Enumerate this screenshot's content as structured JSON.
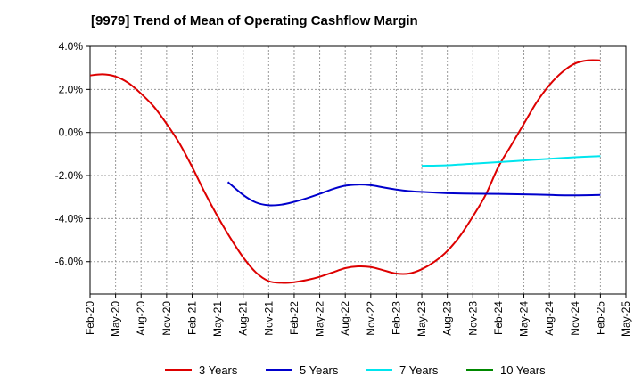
{
  "chart_data": {
    "type": "line",
    "title": "[9979]  Trend of Mean of Operating Cashflow Margin",
    "xlabel": "",
    "ylabel": "",
    "x_ticks": [
      "Feb-20",
      "May-20",
      "Aug-20",
      "Nov-20",
      "Feb-21",
      "May-21",
      "Aug-21",
      "Nov-21",
      "Feb-22",
      "May-22",
      "Aug-22",
      "Nov-22",
      "Feb-23",
      "May-23",
      "Aug-23",
      "Nov-23",
      "Feb-24",
      "May-24",
      "Aug-24",
      "Nov-24",
      "Feb-25",
      "May-25"
    ],
    "y_ticks": [
      "4.0%",
      "2.0%",
      "0.0%",
      "-2.0%",
      "-4.0%",
      "-6.0%"
    ],
    "y_tick_values": [
      4,
      2,
      0,
      -2,
      -4,
      -6
    ],
    "ylim": [
      -7.5,
      4.0
    ],
    "x_unit": "quarter index from Feb-20",
    "grid": true,
    "legend_position": "bottom",
    "series": [
      {
        "name": "3 Years",
        "color": "#dd0000",
        "x": [
          0,
          0.5,
          1,
          1.5,
          2,
          2.5,
          3,
          3.5,
          4,
          4.5,
          5,
          5.5,
          6,
          6.5,
          7,
          7.5,
          8,
          8.5,
          9,
          9.5,
          10,
          10.5,
          11,
          11.5,
          12,
          12.5,
          13,
          13.5,
          14,
          14.5,
          15,
          15.5,
          16,
          16.5,
          17,
          17.5,
          18,
          18.5,
          19,
          19.5,
          20
        ],
        "values": [
          2.65,
          2.7,
          2.6,
          2.3,
          1.8,
          1.2,
          0.4,
          -0.5,
          -1.6,
          -2.8,
          -3.9,
          -4.9,
          -5.8,
          -6.5,
          -6.9,
          -6.98,
          -6.95,
          -6.85,
          -6.7,
          -6.5,
          -6.3,
          -6.22,
          -6.25,
          -6.4,
          -6.55,
          -6.55,
          -6.35,
          -6.0,
          -5.5,
          -4.8,
          -3.9,
          -2.9,
          -1.6,
          -0.6,
          0.4,
          1.4,
          2.2,
          2.8,
          3.2,
          3.35,
          3.35
        ]
      },
      {
        "name": "5 Years",
        "color": "#0000cc",
        "x": [
          5.4,
          6,
          6.5,
          7,
          7.5,
          8,
          8.5,
          9,
          9.5,
          10,
          10.5,
          11,
          11.5,
          12,
          12.5,
          13,
          13.5,
          14,
          15,
          16,
          17,
          18,
          19,
          20
        ],
        "values": [
          -2.3,
          -2.9,
          -3.25,
          -3.38,
          -3.35,
          -3.22,
          -3.05,
          -2.85,
          -2.63,
          -2.47,
          -2.42,
          -2.45,
          -2.55,
          -2.65,
          -2.72,
          -2.76,
          -2.79,
          -2.82,
          -2.84,
          -2.85,
          -2.87,
          -2.9,
          -2.92,
          -2.9
        ]
      },
      {
        "name": "7 Years",
        "color": "#00e5ee",
        "x": [
          13,
          14,
          15,
          16,
          17,
          18,
          19,
          20
        ],
        "values": [
          -1.55,
          -1.52,
          -1.45,
          -1.38,
          -1.3,
          -1.22,
          -1.15,
          -1.1
        ]
      },
      {
        "name": "10 Years",
        "color": "#008800",
        "x": [],
        "values": []
      }
    ]
  }
}
